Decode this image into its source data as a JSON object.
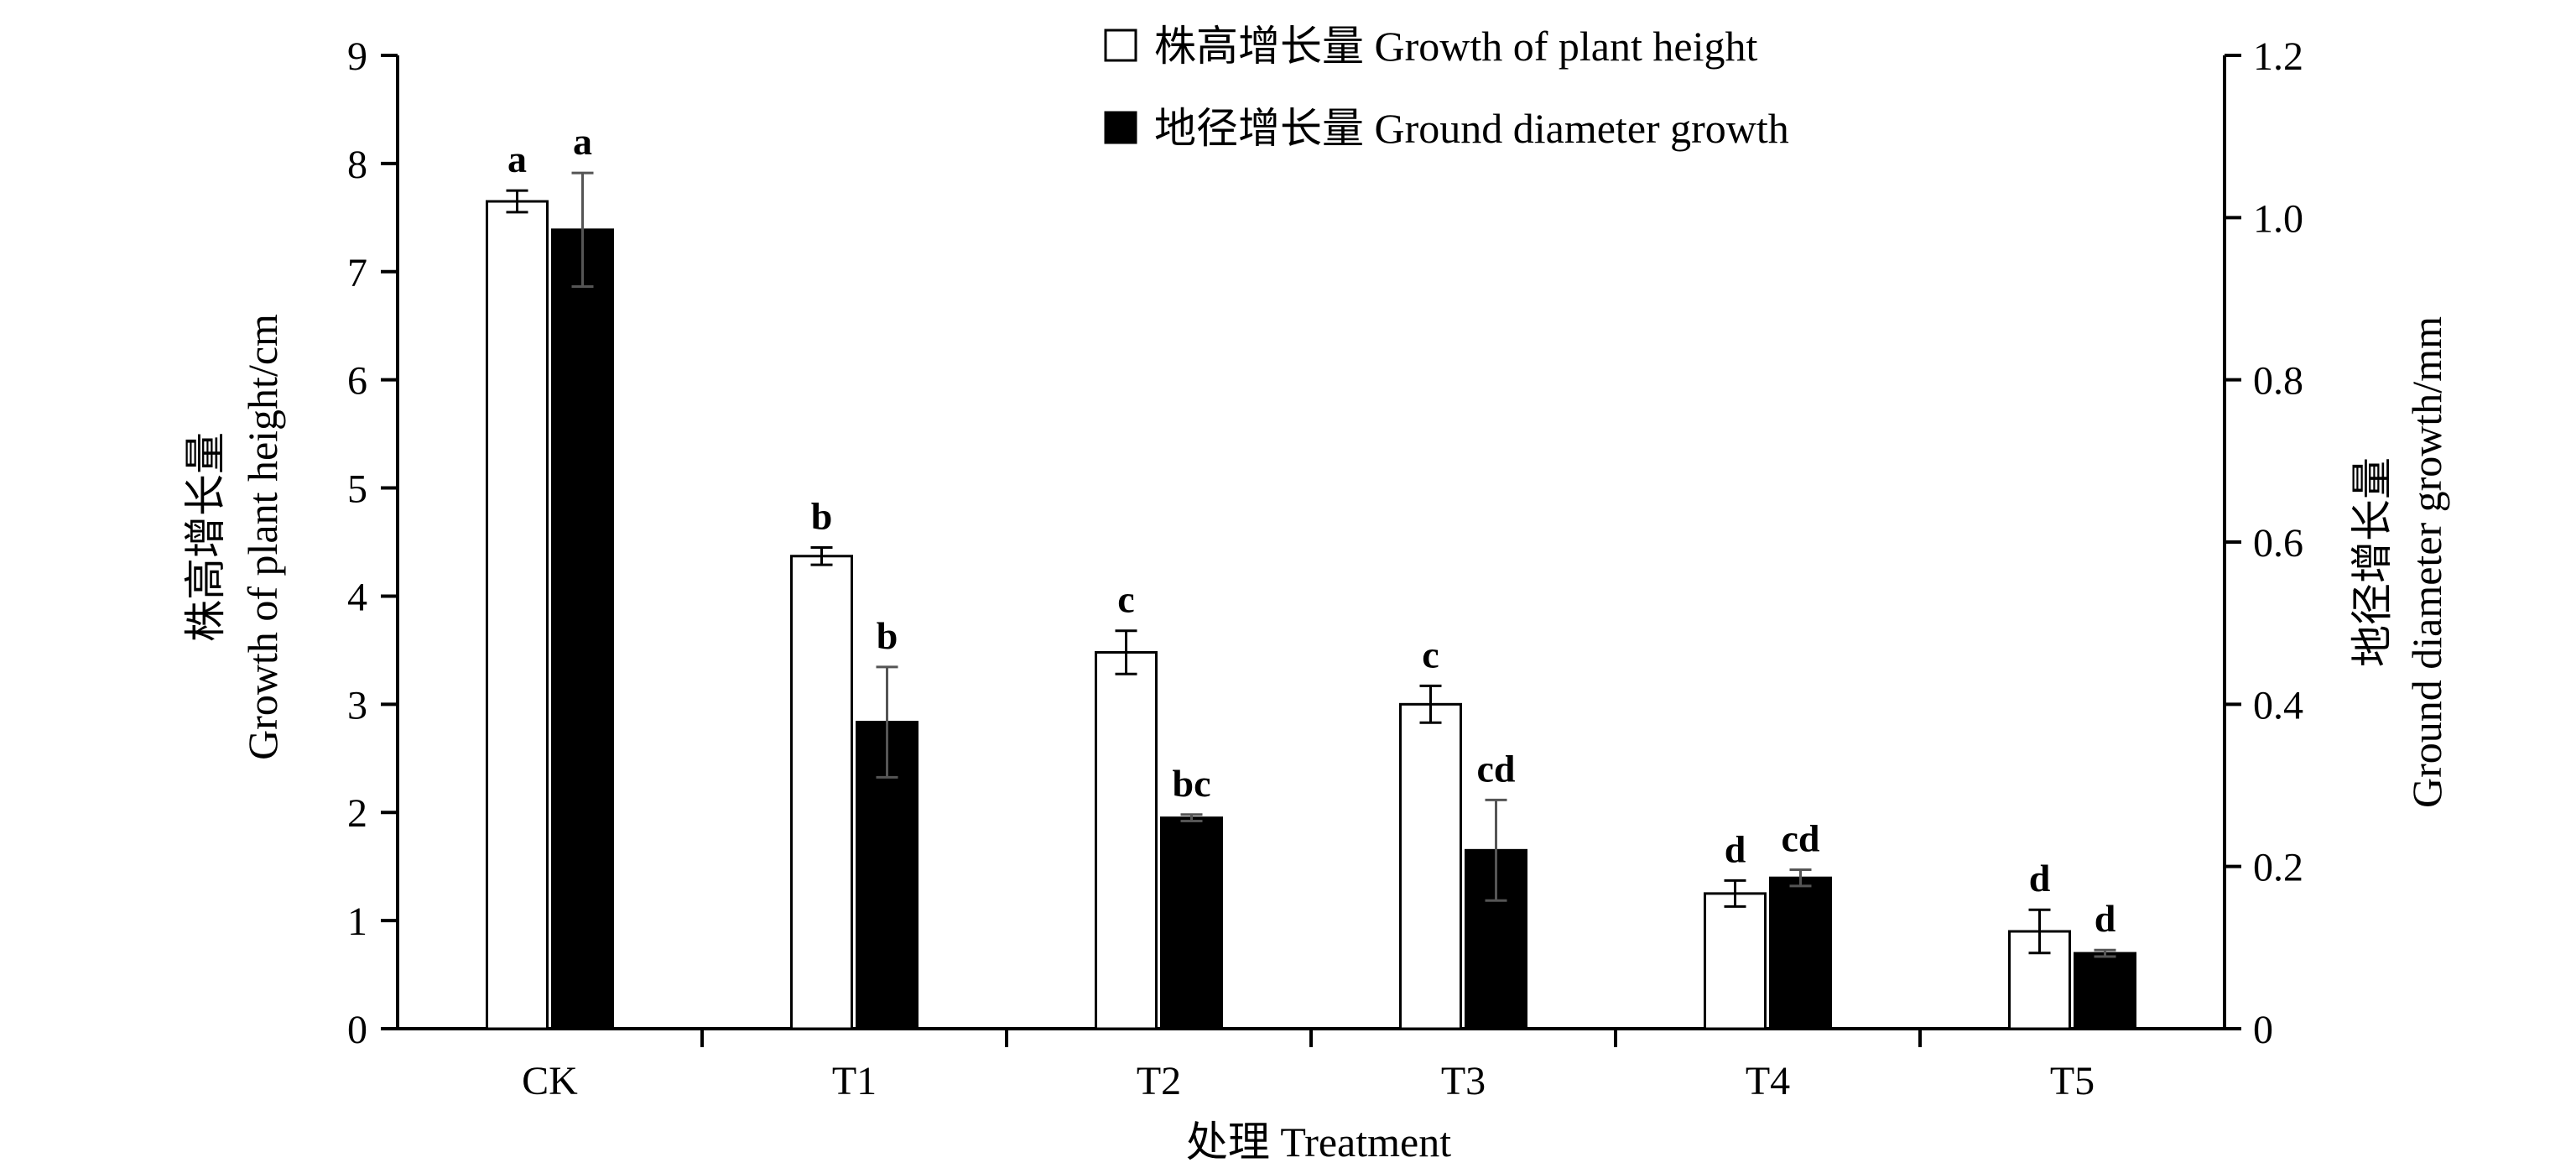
{
  "chart_data": {
    "type": "bar",
    "xlabel": "处理 Treatment",
    "ylabel_left": [
      "株高增长量",
      "Growth of plant height/cm"
    ],
    "ylabel_right": [
      "地径增长量",
      "Ground diameter growth/mm"
    ],
    "categories": [
      "CK",
      "T1",
      "T2",
      "T3",
      "T4",
      "T5"
    ],
    "left_axis": {
      "ylim": [
        0,
        9
      ],
      "ticks": [
        "0",
        "1",
        "2",
        "3",
        "4",
        "5",
        "6",
        "7",
        "8",
        "9"
      ]
    },
    "right_axis": {
      "ylim": [
        0,
        1.2
      ],
      "ticks": [
        "0",
        "0.2",
        "0.4",
        "0.6",
        "0.8",
        "1.0",
        "1.2"
      ]
    },
    "legend_placement": "top-center",
    "grid": false,
    "series": [
      {
        "name": "株高增长量 Growth of plant height",
        "axis": "left",
        "fill": "#ffffff",
        "values": [
          7.65,
          4.37,
          3.48,
          3.0,
          1.25,
          0.9
        ],
        "errors": [
          0.1,
          0.08,
          0.2,
          0.17,
          0.12,
          0.2
        ],
        "labels": [
          "a",
          "b",
          "c",
          "c",
          "d",
          "d"
        ]
      },
      {
        "name": "地径增长量 Ground diameter growth",
        "axis": "right",
        "fill": "#000000",
        "values": [
          0.985,
          0.378,
          0.26,
          0.22,
          0.186,
          0.093
        ],
        "errors": [
          0.07,
          0.068,
          0.004,
          0.062,
          0.01,
          0.004
        ],
        "labels": [
          "a",
          "b",
          "bc",
          "cd",
          "cd",
          "d"
        ]
      }
    ]
  }
}
